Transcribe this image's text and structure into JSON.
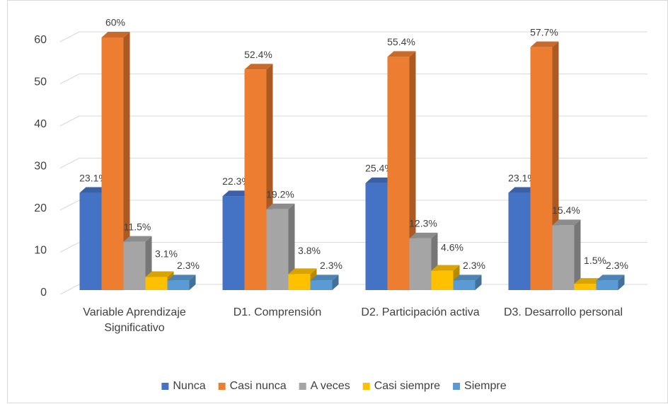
{
  "chart_data": {
    "type": "bar3d",
    "categories": [
      "Variable Aprendizaje Significativo",
      "D1. Comprensión",
      "D2. Participación activa",
      "D3. Desarrollo personal"
    ],
    "series": [
      {
        "name": "Nunca",
        "color": "#4472c4",
        "values": [
          23.1,
          22.3,
          25.4,
          23.1
        ],
        "value_labels": [
          "23.1%",
          "22.3%",
          "25.4%",
          "23.1%"
        ]
      },
      {
        "name": "Casi nunca",
        "color": "#ed7d31",
        "values": [
          60,
          52.4,
          55.4,
          57.7
        ],
        "value_labels": [
          "60%",
          "52.4%",
          "55.4%",
          "57.7%"
        ]
      },
      {
        "name": "A veces",
        "color": "#a5a5a5",
        "values": [
          11.5,
          19.2,
          12.3,
          15.4
        ],
        "value_labels": [
          "11.5%",
          "19.2%",
          "12.3%",
          "15.4%"
        ]
      },
      {
        "name": "Casi siempre",
        "color": "#ffc000",
        "values": [
          3.1,
          3.8,
          4.6,
          1.5
        ],
        "value_labels": [
          "3.1%",
          "3.8%",
          "4.6%",
          "1.5%"
        ]
      },
      {
        "name": "Siempre",
        "color": "#5b9bd5",
        "values": [
          2.3,
          2.3,
          2.3,
          2.3
        ],
        "value_labels": [
          "2.3%",
          "2.3%",
          "2.3%",
          "2.3%"
        ]
      }
    ],
    "ylim": [
      0,
      60
    ],
    "yticks": [
      0,
      10,
      20,
      30,
      40,
      50,
      60
    ],
    "grid": true,
    "legend": "bottom"
  }
}
